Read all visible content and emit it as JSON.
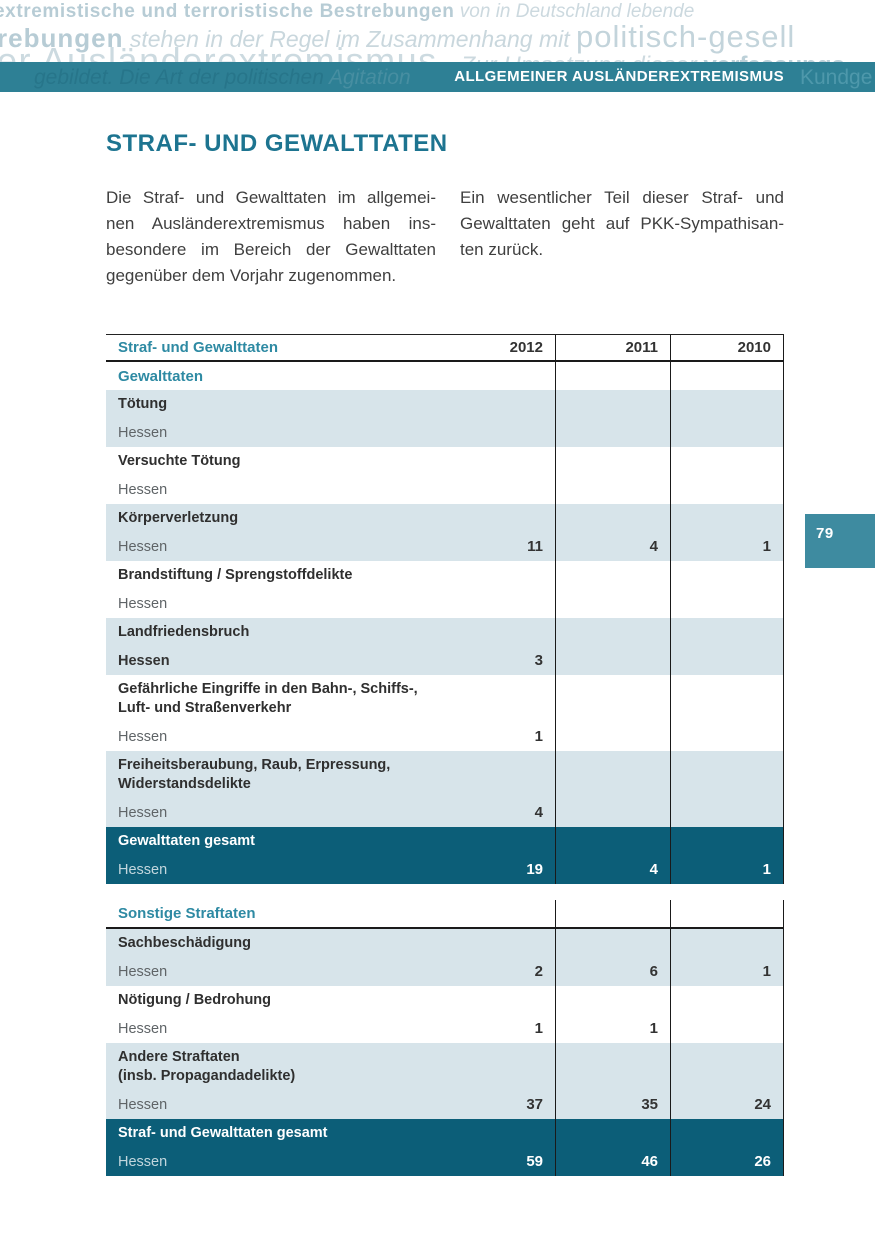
{
  "page": {
    "number": "79"
  },
  "header": {
    "band_label": "ALLGEMEINER AUSLÄNDEREXTREMISMUS"
  },
  "watermark": {
    "l1_bold": "extremistische und terroristische Bestrebungen",
    "l1_italic": " von in Deutschland lebende",
    "l2_bold": "rebungen",
    "l2_italic": " stehen in der Regel im Zusammenhang mit ",
    "l2_light": "politisch-gesell",
    "l3_light": "er Ausländerextremismus. ",
    "l3_italic": "Zur Umsetzung dieser ",
    "l3_bold": "verfassungs",
    "band_faded_left_italic": "gebildet. Die Art der politischen ",
    "band_faded_left_light": "Agitation",
    "band_faded_right": "Kundge"
  },
  "article": {
    "title": "STRAF- UND GEWALTTATEN",
    "left_lines": [
      "Die Straf- und Gewalttaten im allgemei-",
      "nen Ausländerextremismus haben ins-",
      "besondere im Bereich der Gewalttaten",
      "gegenüber dem Vorjahr zugenommen."
    ],
    "right_lines": [
      "Ein wesentlicher Teil dieser Straf- und",
      "Gewalttaten geht auf PKK-Sympathisan-",
      "ten zurück."
    ]
  },
  "table1": {
    "title": "Straf- und Gewalttaten",
    "years": [
      "2012",
      "2011",
      "2010"
    ],
    "subheader": "Gewalttaten",
    "rows": [
      {
        "label": "Tötung",
        "region": "Hessen",
        "v2012": "",
        "v2011": "",
        "v2010": ""
      },
      {
        "label": "Versuchte Tötung",
        "region": "Hessen",
        "v2012": "",
        "v2011": "",
        "v2010": ""
      },
      {
        "label": "Körperverletzung",
        "region": "Hessen",
        "v2012": "11",
        "v2011": "4",
        "v2010": "1"
      },
      {
        "label": "Brandstiftung / Sprengstoffdelikte",
        "region": "Hessen",
        "v2012": "",
        "v2011": "",
        "v2010": ""
      },
      {
        "label": "Landfriedensbruch",
        "region": "Hessen",
        "v2012": "3",
        "v2011": "",
        "v2010": ""
      },
      {
        "label": "Gefährliche Eingriffe in den Bahn-, Schiffs-,\nLuft- und Straßenverkehr",
        "region": "Hessen",
        "v2012": "1",
        "v2011": "",
        "v2010": ""
      },
      {
        "label": "Freiheitsberaubung, Raub, Erpressung,\nWiderstandsdelikte",
        "region": "Hessen",
        "v2012": "4",
        "v2011": "",
        "v2010": ""
      }
    ],
    "total": {
      "label": "Gewalttaten gesamt",
      "region": "Hessen",
      "v2012": "19",
      "v2011": "4",
      "v2010": "1"
    }
  },
  "table2": {
    "title": "Sonstige Straftaten",
    "rows": [
      {
        "label": "Sachbeschädigung",
        "region": "Hessen",
        "v2012": "2",
        "v2011": "6",
        "v2010": "1"
      },
      {
        "label": "Nötigung / Bedrohung",
        "region": "Hessen",
        "v2012": "1",
        "v2011": "1",
        "v2010": ""
      },
      {
        "label": "Andere Straftaten\n(insb. Propagandadelikte)",
        "region": "Hessen",
        "v2012": "37",
        "v2011": "35",
        "v2010": "24"
      }
    ],
    "total": {
      "label": "Straf- und Gewalttaten gesamt",
      "region": "Hessen",
      "v2012": "59",
      "v2011": "46",
      "v2010": "26"
    }
  }
}
